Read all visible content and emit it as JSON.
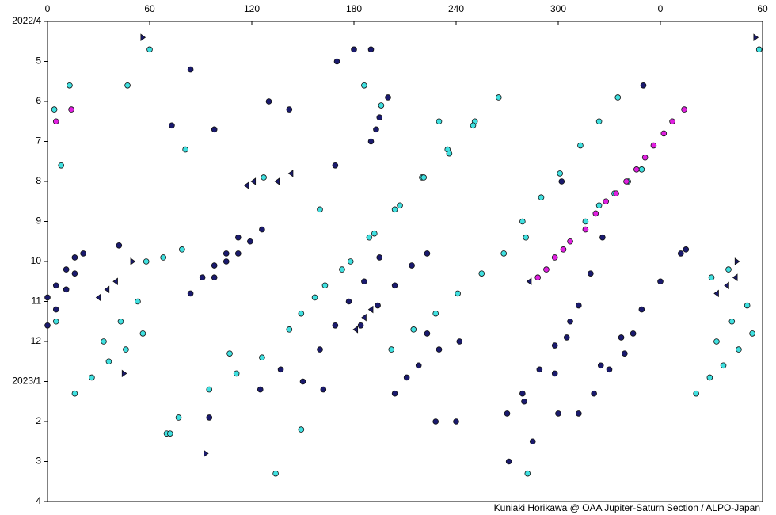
{
  "chart_data": {
    "type": "scatter",
    "credit": "Kuniaki Horikawa @ OAA Jupiter-Saturn Section / ALPO-Japan",
    "xlim": [
      0,
      420
    ],
    "xticks": [
      0,
      60,
      120,
      180,
      240,
      300,
      {
        "value": 360,
        "label": "0"
      },
      {
        "value": 420,
        "label": "60"
      }
    ],
    "ylim": [
      0,
      12
    ],
    "yticks": [
      {
        "value": 0,
        "label": "2022/4"
      },
      {
        "value": 1,
        "label": "5"
      },
      {
        "value": 2,
        "label": "6"
      },
      {
        "value": 3,
        "label": "7"
      },
      {
        "value": 4,
        "label": "8"
      },
      {
        "value": 5,
        "label": "9"
      },
      {
        "value": 6,
        "label": "10"
      },
      {
        "value": 7,
        "label": "11"
      },
      {
        "value": 8,
        "label": "12"
      },
      {
        "value": 9,
        "label": "2023/1"
      },
      {
        "value": 10,
        "label": "2"
      },
      {
        "value": 11,
        "label": "3"
      },
      {
        "value": 12,
        "label": "4"
      }
    ],
    "y_inverted": true,
    "series": [
      {
        "color": "#40e0e0",
        "marker": "circle",
        "x": [
          126,
          142,
          157,
          173,
          189,
          204,
          220,
          235,
          251,
          149,
          163,
          178,
          192,
          207,
          221,
          236,
          250,
          265,
          202,
          215,
          228,
          241,
          255,
          268,
          281,
          279,
          290,
          301,
          313,
          324,
          335,
          316,
          324,
          333,
          341,
          349,
          16,
          26,
          36,
          46,
          56,
          33,
          43,
          53,
          58,
          68,
          79,
          70,
          72,
          77,
          95,
          111,
          107,
          134,
          149,
          282,
          8,
          47,
          60,
          5,
          4,
          13,
          81,
          127,
          160,
          186,
          196,
          230,
          381,
          389,
          397,
          406,
          414,
          393,
          402,
          411,
          418,
          400,
          390
        ],
        "y": [
          8.4,
          7.7,
          6.9,
          6.2,
          5.4,
          4.7,
          3.9,
          3.2,
          2.5,
          7.3,
          6.6,
          6.0,
          5.3,
          4.6,
          3.9,
          3.3,
          2.6,
          1.9,
          8.2,
          7.7,
          7.3,
          6.8,
          6.3,
          5.8,
          5.4,
          5.0,
          4.4,
          3.8,
          3.1,
          2.5,
          1.9,
          5.0,
          4.6,
          4.3,
          4.0,
          3.7,
          9.3,
          8.9,
          8.5,
          8.2,
          7.8,
          8.0,
          7.5,
          7.0,
          6.0,
          5.9,
          5.7,
          10.3,
          10.3,
          9.9,
          9.2,
          8.8,
          8.3,
          11.3,
          10.2,
          11.3,
          3.6,
          1.6,
          0.7,
          7.5,
          2.2,
          1.6,
          3.2,
          3.9,
          4.7,
          1.6,
          2.1,
          2.5,
          9.3,
          8.9,
          8.6,
          8.2,
          7.8,
          8.0,
          7.5,
          7.1,
          0.7,
          6.2,
          6.4
        ]
      },
      {
        "color": "#1a1a6e",
        "marker": "circle",
        "x": [
          0,
          5,
          11,
          16,
          21,
          0,
          5,
          11,
          16,
          84,
          91,
          98,
          105,
          112,
          98,
          105,
          112,
          119,
          126,
          160,
          169,
          177,
          186,
          195,
          184,
          194,
          204,
          214,
          223,
          204,
          211,
          218,
          223,
          190,
          193,
          195,
          200,
          270,
          279,
          289,
          298,
          307,
          312,
          321,
          330,
          339,
          344,
          325,
          337,
          349,
          360,
          372,
          298,
          305,
          312,
          319,
          326,
          228,
          240,
          230,
          242,
          285,
          300,
          302,
          98,
          73,
          42,
          130,
          84,
          142,
          170,
          180,
          190,
          169,
          271,
          280,
          350,
          375,
          150,
          137,
          125,
          162,
          95
        ],
        "y": [
          7.6,
          7.2,
          6.7,
          6.3,
          5.8,
          6.9,
          6.6,
          6.2,
          5.9,
          6.8,
          6.4,
          6.1,
          5.8,
          5.4,
          6.4,
          6.0,
          5.8,
          5.5,
          5.2,
          8.2,
          7.6,
          7.0,
          6.5,
          5.9,
          7.6,
          7.1,
          6.6,
          6.1,
          5.8,
          9.3,
          8.9,
          8.6,
          7.8,
          3.0,
          2.7,
          2.4,
          1.9,
          9.8,
          9.3,
          8.7,
          8.1,
          7.5,
          9.8,
          9.3,
          8.7,
          8.3,
          7.8,
          8.6,
          7.9,
          7.2,
          6.5,
          5.8,
          8.8,
          7.9,
          7.1,
          6.3,
          5.4,
          10.0,
          10.0,
          8.2,
          8.0,
          10.5,
          9.8,
          4.0,
          2.7,
          2.6,
          5.6,
          2.0,
          1.2,
          2.2,
          1.0,
          0.7,
          0.7,
          3.6,
          11.0,
          9.5,
          1.6,
          5.7,
          9.0,
          8.7,
          9.2,
          9.2,
          9.9
        ]
      },
      {
        "color": "#e020e0",
        "marker": "circle",
        "x": [
          5,
          14,
          288,
          293,
          298,
          303,
          307,
          316,
          322,
          328,
          334,
          340,
          346,
          351,
          356,
          362,
          367,
          374
        ],
        "y": [
          2.5,
          2.2,
          6.4,
          6.2,
          5.9,
          5.7,
          5.5,
          5.2,
          4.8,
          4.5,
          4.3,
          4.0,
          3.7,
          3.4,
          3.1,
          2.8,
          2.5,
          2.2
        ]
      },
      {
        "color": "#1a1a6e",
        "marker": "triangle-right",
        "x": [
          56,
          416,
          93,
          45,
          50,
          405
        ],
        "y": [
          0.4,
          0.4,
          10.8,
          8.8,
          6.0,
          6.0
        ]
      },
      {
        "color": "#1a1a6e",
        "marker": "triangle-left",
        "x": [
          30,
          35,
          40,
          117,
          121,
          135,
          143,
          181,
          186,
          190,
          283,
          393,
          399,
          404
        ],
        "y": [
          6.9,
          6.7,
          6.5,
          4.1,
          4.0,
          4.0,
          3.8,
          7.7,
          7.4,
          7.2,
          6.5,
          6.8,
          6.6,
          6.4
        ]
      }
    ]
  }
}
